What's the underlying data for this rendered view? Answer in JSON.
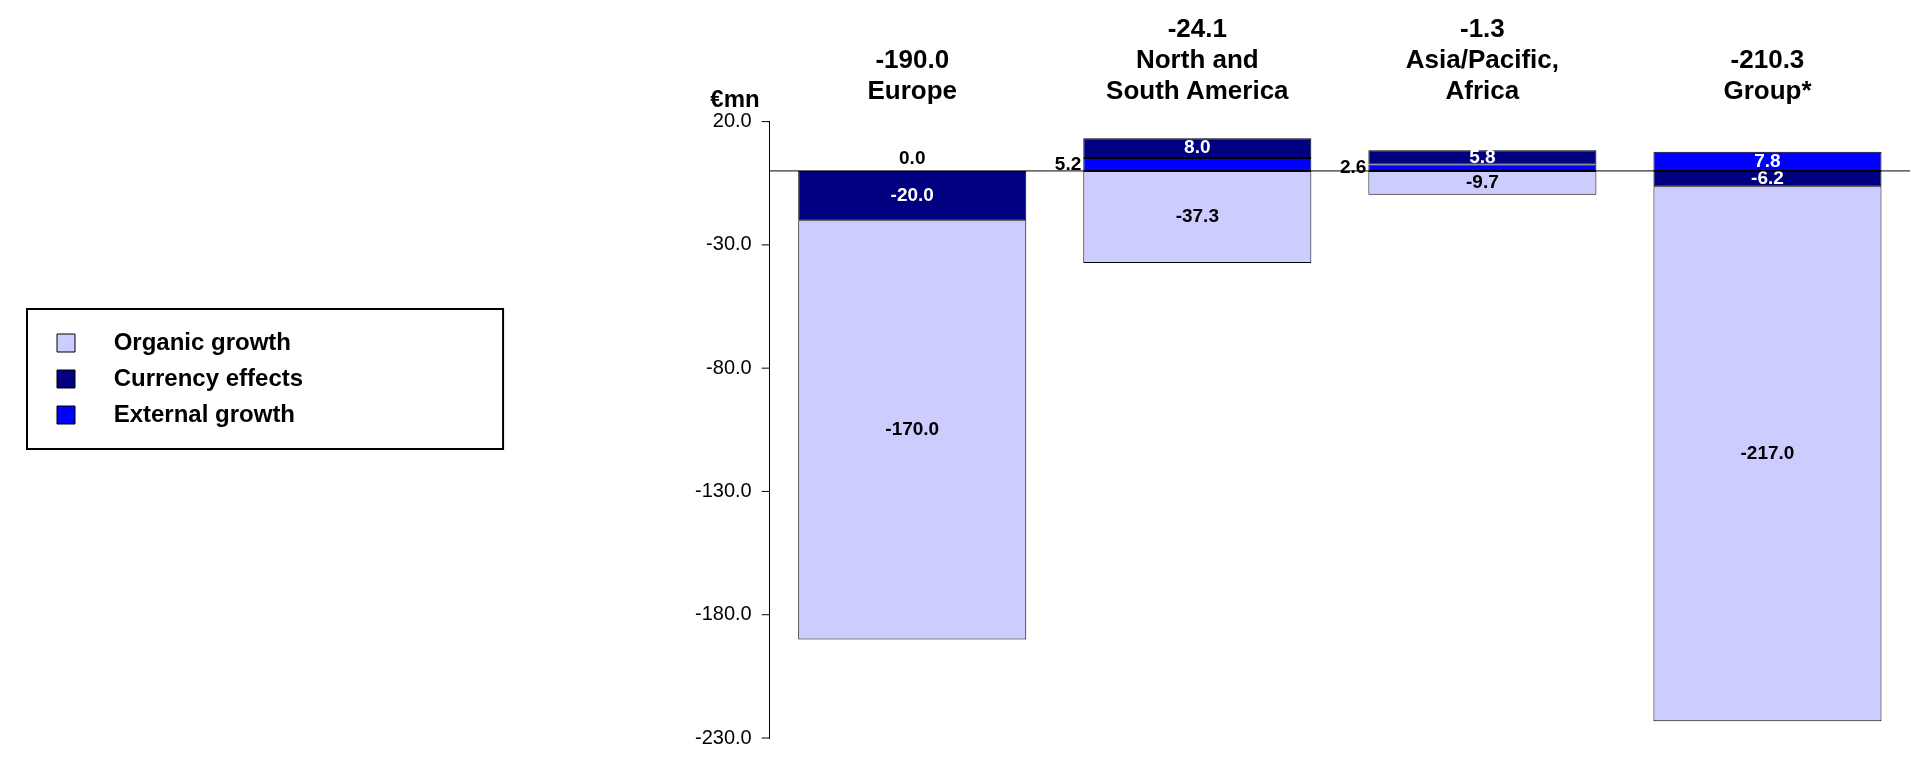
{
  "chart_data": {
    "type": "bar",
    "stacked": true,
    "ylabel": "€mn",
    "categories": [
      "Europe",
      "North and South America",
      "Asia/Pacific, Africa",
      "Group*"
    ],
    "annotations": [
      "-190.0",
      "-24.1",
      "-1.3",
      "-210.3"
    ],
    "series": [
      {
        "name": "External growth",
        "color": "#0000ff",
        "values": [
          0.0,
          5.2,
          2.6,
          7.8
        ],
        "value_labels": [
          "0.0",
          "5.2",
          "2.6",
          "7.8"
        ]
      },
      {
        "name": "Currency effects",
        "color": "#000080",
        "values": [
          -20.0,
          8.0,
          5.8,
          -6.2
        ],
        "value_labels": [
          "-20.0",
          "8.0",
          "5.8",
          "-6.2"
        ]
      },
      {
        "name": "Organic growth",
        "color": "#ccccff",
        "values": [
          -170.0,
          -37.3,
          -9.7,
          -217.0
        ],
        "value_labels": [
          "-170.0",
          "-37.3",
          "-9.7",
          "-217.0"
        ]
      }
    ],
    "ylim": [
      -230,
      20
    ],
    "yticks": [
      {
        "value": 20,
        "label": "20.0"
      },
      {
        "value": -30,
        "label": "-30.0"
      },
      {
        "value": -80,
        "label": "-80.0"
      },
      {
        "value": -130,
        "label": "-130.0"
      },
      {
        "value": -180,
        "label": "-180.0"
      },
      {
        "value": -230,
        "label": "-230.0"
      }
    ],
    "grid": false,
    "legend": "left"
  }
}
